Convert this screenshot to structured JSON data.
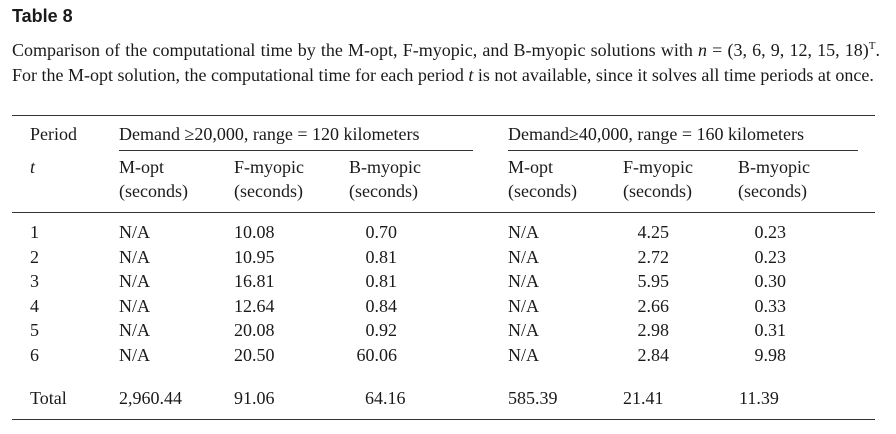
{
  "table": {
    "title": "Table 8",
    "caption_part1": "Comparison of the computational time by the M-opt, F-myopic, and B-myopic solutions with ",
    "caption_n": "n",
    "caption_eq": " = (3, 6, 9, 12, 15, 18)",
    "caption_sup": "T",
    "caption_part2": ". For the M-opt solution, the computational time for each period ",
    "caption_t": "t",
    "caption_part3": " is not available, since it solves all time periods at once.",
    "col_period": "Period",
    "col_period_sym": "t",
    "group1": "Demand ≥20,000, range = 120 kilometers",
    "group2": "Demand≥40,000, range = 160 kilometers",
    "sub": {
      "mopt": "M-opt",
      "fmyopic": "F-myopic",
      "bmyopic": "B-myopic",
      "units": "(seconds)"
    },
    "rows": [
      {
        "t": "1",
        "g1_mopt": "N/A",
        "g1_f": "10.08",
        "g1_b": "0.70",
        "g2_mopt": "N/A",
        "g2_f": "4.25",
        "g2_b": "0.23"
      },
      {
        "t": "2",
        "g1_mopt": "N/A",
        "g1_f": "10.95",
        "g1_b": "0.81",
        "g2_mopt": "N/A",
        "g2_f": "2.72",
        "g2_b": "0.23"
      },
      {
        "t": "3",
        "g1_mopt": "N/A",
        "g1_f": "16.81",
        "g1_b": "0.81",
        "g2_mopt": "N/A",
        "g2_f": "5.95",
        "g2_b": "0.30"
      },
      {
        "t": "4",
        "g1_mopt": "N/A",
        "g1_f": "12.64",
        "g1_b": "0.84",
        "g2_mopt": "N/A",
        "g2_f": "2.66",
        "g2_b": "0.33"
      },
      {
        "t": "5",
        "g1_mopt": "N/A",
        "g1_f": "20.08",
        "g1_b": "0.92",
        "g2_mopt": "N/A",
        "g2_f": "2.98",
        "g2_b": "0.31"
      },
      {
        "t": "6",
        "g1_mopt": "N/A",
        "g1_f": "20.50",
        "g1_b": "60.06",
        "g2_mopt": "N/A",
        "g2_f": "2.84",
        "g2_b": "9.98"
      }
    ],
    "total": {
      "label": "Total",
      "g1_mopt": "2,960.44",
      "g1_f": "91.06",
      "g1_b": "64.16",
      "g2_mopt": "585.39",
      "g2_f": "21.41",
      "g2_b": "11.39"
    }
  }
}
